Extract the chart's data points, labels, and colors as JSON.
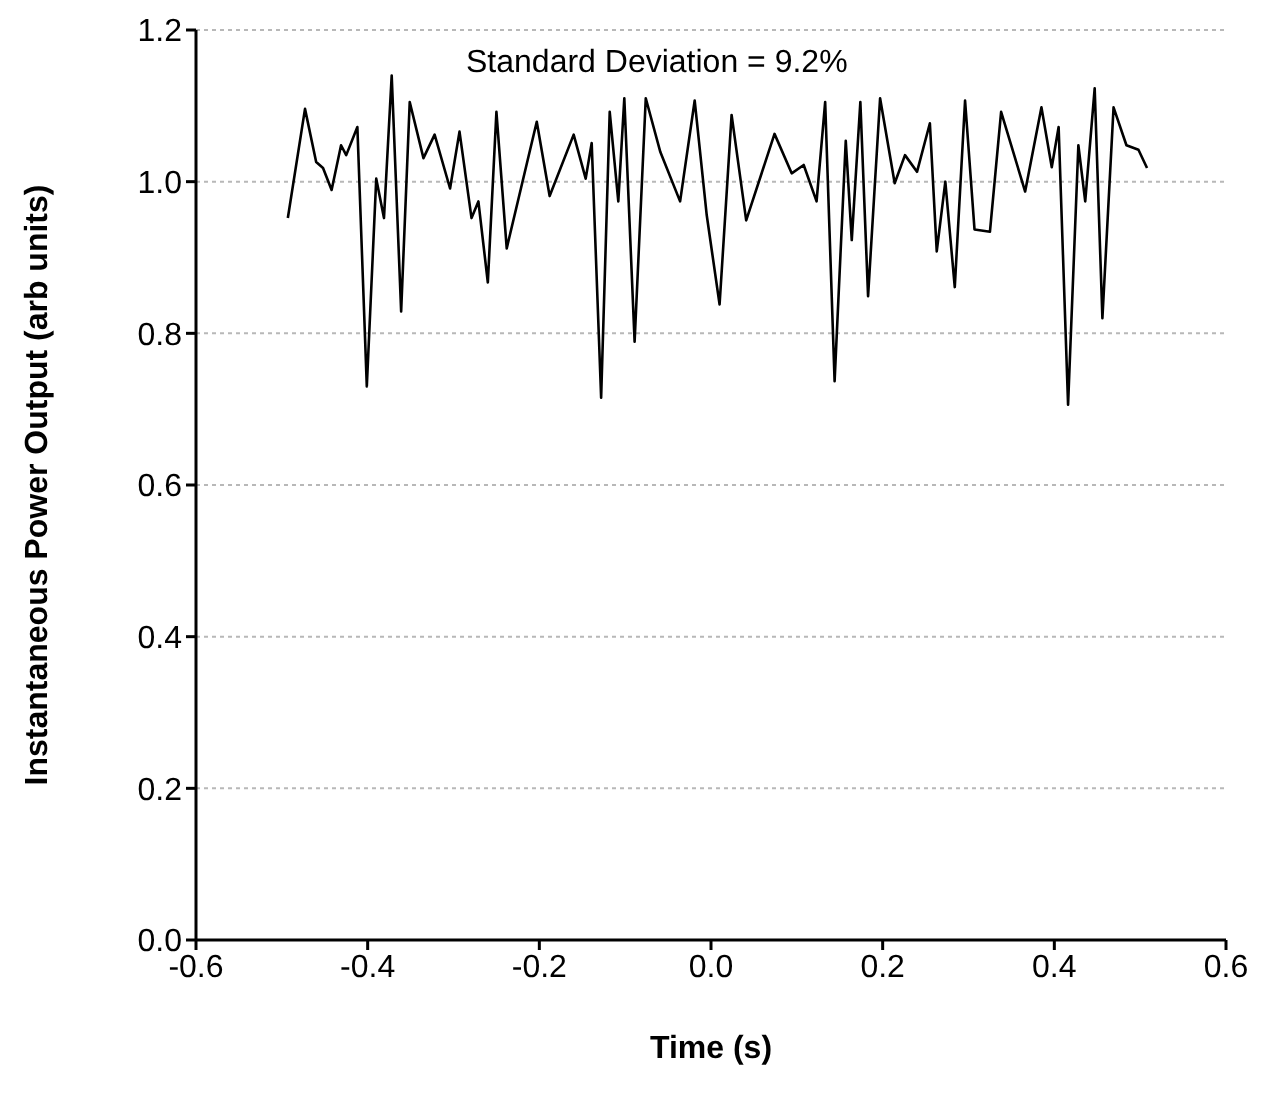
{
  "chart_data": {
    "type": "line",
    "xlabel": "Time (s)",
    "ylabel": "Instantaneous Power Output (arb units)",
    "annotations": [
      "Standard Deviation = 9.2%"
    ],
    "x": [
      -0.493,
      -0.473,
      -0.46,
      -0.452,
      -0.442,
      -0.431,
      -0.425,
      -0.412,
      -0.401,
      -0.39,
      -0.381,
      -0.372,
      -0.361,
      -0.351,
      -0.335,
      -0.322,
      -0.304,
      -0.293,
      -0.279,
      -0.271,
      -0.26,
      -0.25,
      -0.238,
      -0.203,
      -0.188,
      -0.16,
      -0.146,
      -0.139,
      -0.128,
      -0.118,
      -0.108,
      -0.101,
      -0.089,
      -0.076,
      -0.059,
      -0.036,
      -0.019,
      -0.005,
      0.01,
      0.024,
      0.041,
      0.074,
      0.094,
      0.108,
      0.123,
      0.133,
      0.144,
      0.157,
      0.164,
      0.174,
      0.183,
      0.197,
      0.214,
      0.226,
      0.24,
      0.255,
      0.263,
      0.273,
      0.284,
      0.296,
      0.307,
      0.325,
      0.338,
      0.366,
      0.385,
      0.397,
      0.405,
      0.416,
      0.428,
      0.436,
      0.447,
      0.456,
      0.469,
      0.484,
      0.498,
      0.508
    ],
    "series": [
      {
        "color": "#000000",
        "values": [
          0.952,
          1.096,
          1.026,
          1.018,
          0.989,
          1.048,
          1.035,
          1.072,
          0.73,
          1.004,
          0.952,
          1.14,
          0.829,
          1.105,
          1.031,
          1.062,
          0.991,
          1.066,
          0.952,
          0.974,
          0.867,
          1.092,
          0.912,
          1.079,
          0.981,
          1.062,
          1.004,
          1.051,
          0.715,
          1.092,
          0.974,
          1.11,
          0.789,
          1.11,
          1.039,
          0.974,
          1.107,
          0.956,
          0.838,
          1.088,
          0.949,
          1.063,
          1.011,
          1.022,
          0.974,
          1.105,
          0.737,
          1.054,
          0.923,
          1.105,
          0.849,
          1.11,
          0.998,
          1.035,
          1.013,
          1.077,
          0.908,
          1.0,
          0.861,
          1.107,
          0.937,
          0.934,
          1.092,
          0.987,
          1.098,
          1.019,
          1.072,
          0.706,
          1.048,
          0.974,
          1.123,
          0.82,
          1.098,
          1.048,
          1.042,
          1.018
        ]
      }
    ],
    "xlim": [
      -0.6,
      0.6
    ],
    "xticks": [
      {
        "value": -0.6,
        "label": "-0.6"
      },
      {
        "value": -0.4,
        "label": "-0.4"
      },
      {
        "value": -0.2,
        "label": "-0.2"
      },
      {
        "value": 0,
        "label": "0.0"
      },
      {
        "value": 0.2,
        "label": "0.2"
      },
      {
        "value": 0.4,
        "label": "0.4"
      },
      {
        "value": 0.6,
        "label": "0.6"
      }
    ],
    "ylim": [
      0,
      1.2
    ],
    "yticks": [
      {
        "value": 0,
        "label": "0.0"
      },
      {
        "value": 0.2,
        "label": "0.2"
      },
      {
        "value": 0.4,
        "label": "0.4"
      },
      {
        "value": 0.6,
        "label": "0.6"
      },
      {
        "value": 0.8,
        "label": "0.8"
      },
      {
        "value": 1,
        "label": "1.0"
      },
      {
        "value": 1.2,
        "label": "1.2"
      }
    ],
    "grid": "y",
    "legend": false,
    "marker": "none",
    "line_style": "solid"
  }
}
